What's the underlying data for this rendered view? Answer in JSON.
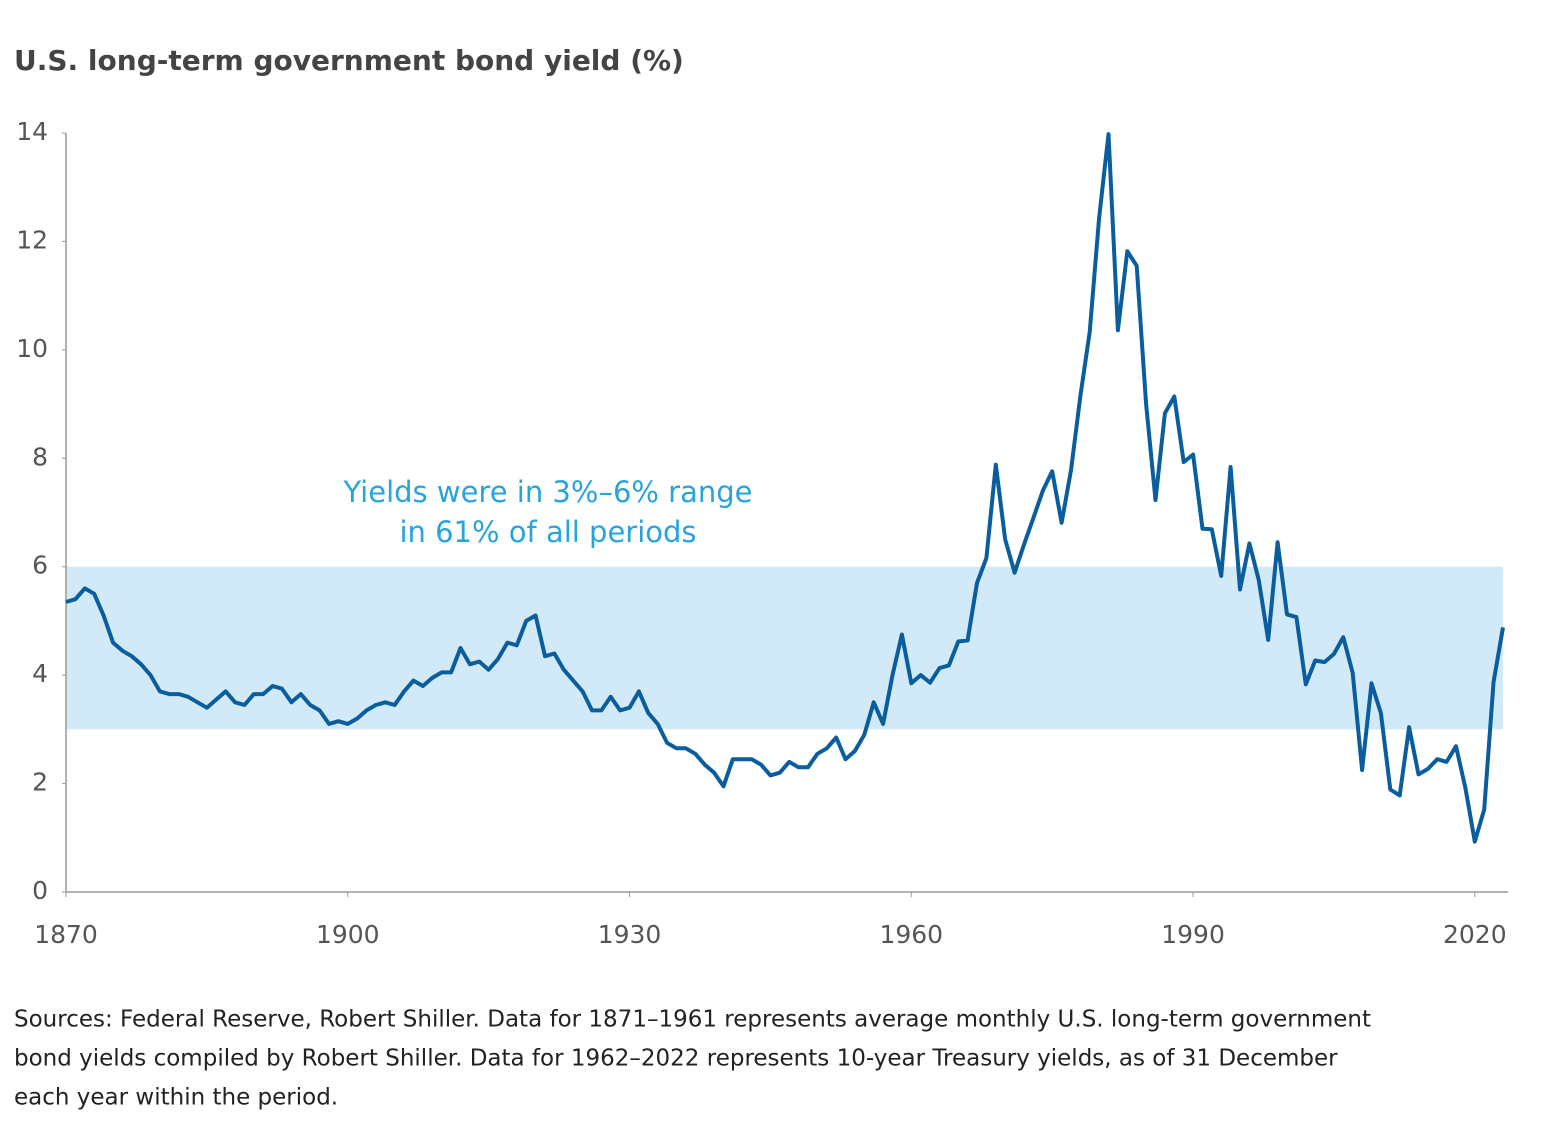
{
  "chart_data": {
    "type": "line",
    "title": "U.S. long-term government bond yield (%)",
    "annotation": [
      "Yields were in 3%–6% range",
      "in 61% of all periods"
    ],
    "band": {
      "from": 3,
      "to": 6,
      "color": "#d2eaf7"
    },
    "xlim": [
      1870,
      2023
    ],
    "xticks": [
      1870,
      1900,
      1930,
      1960,
      1990,
      2020
    ],
    "ylim": [
      0,
      14
    ],
    "yticks": [
      0,
      2,
      4,
      6,
      8,
      10,
      12,
      14
    ],
    "grid": false,
    "x": [
      1870,
      1871,
      1872,
      1873,
      1874,
      1875,
      1876,
      1877,
      1878,
      1879,
      1880,
      1881,
      1882,
      1883,
      1884,
      1885,
      1886,
      1887,
      1888,
      1889,
      1890,
      1891,
      1892,
      1893,
      1894,
      1895,
      1896,
      1897,
      1898,
      1899,
      1900,
      1901,
      1902,
      1903,
      1904,
      1905,
      1906,
      1907,
      1908,
      1909,
      1910,
      1911,
      1912,
      1913,
      1914,
      1915,
      1916,
      1917,
      1918,
      1919,
      1920,
      1921,
      1922,
      1923,
      1924,
      1925,
      1926,
      1927,
      1928,
      1929,
      1930,
      1931,
      1932,
      1933,
      1934,
      1935,
      1936,
      1937,
      1938,
      1939,
      1940,
      1941,
      1942,
      1943,
      1944,
      1945,
      1946,
      1947,
      1948,
      1949,
      1950,
      1951,
      1952,
      1953,
      1954,
      1955,
      1956,
      1957,
      1958,
      1959,
      1960,
      1961,
      1962,
      1963,
      1964,
      1965,
      1966,
      1967,
      1968,
      1969,
      1970,
      1971,
      1972,
      1973,
      1974,
      1975,
      1976,
      1977,
      1978,
      1979,
      1980,
      1981,
      1982,
      1983,
      1984,
      1985,
      1986,
      1987,
      1988,
      1989,
      1990,
      1991,
      1992,
      1993,
      1994,
      1995,
      1996,
      1997,
      1998,
      1999,
      2000,
      2001,
      2002,
      2003,
      2004,
      2005,
      2006,
      2007,
      2008,
      2009,
      2010,
      2011,
      2012,
      2013,
      2014,
      2015,
      2016,
      2017,
      2018,
      2019,
      2020,
      2021,
      2022,
      2023
    ],
    "series": [
      {
        "color": "#0b5e9e",
        "values": [
          5.35,
          5.4,
          5.6,
          5.5,
          5.1,
          4.6,
          4.45,
          4.35,
          4.2,
          4.0,
          3.7,
          3.65,
          3.65,
          3.6,
          3.5,
          3.4,
          3.55,
          3.7,
          3.5,
          3.45,
          3.65,
          3.65,
          3.8,
          3.75,
          3.5,
          3.65,
          3.45,
          3.35,
          3.1,
          3.15,
          3.1,
          3.2,
          3.35,
          3.45,
          3.5,
          3.45,
          3.7,
          3.9,
          3.8,
          3.95,
          4.05,
          4.05,
          4.5,
          4.2,
          4.25,
          4.1,
          4.3,
          4.6,
          4.55,
          5.0,
          5.1,
          4.35,
          4.4,
          4.1,
          3.9,
          3.7,
          3.35,
          3.35,
          3.6,
          3.35,
          3.4,
          3.7,
          3.3,
          3.1,
          2.75,
          2.65,
          2.65,
          2.55,
          2.35,
          2.2,
          1.95,
          2.45,
          2.45,
          2.45,
          2.35,
          2.15,
          2.2,
          2.4,
          2.3,
          2.3,
          2.55,
          2.65,
          2.85,
          2.45,
          2.6,
          2.9,
          3.5,
          3.1,
          4.0,
          4.75,
          3.85,
          4.0,
          3.86,
          4.13,
          4.18,
          4.62,
          4.64,
          5.7,
          6.16,
          7.88,
          6.5,
          5.89,
          6.41,
          6.9,
          7.4,
          7.76,
          6.81,
          7.78,
          9.15,
          10.33,
          12.43,
          13.98,
          10.36,
          11.82,
          11.55,
          9.0,
          7.23,
          8.83,
          9.14,
          7.93,
          8.07,
          6.7,
          6.69,
          5.83,
          7.84,
          5.58,
          6.43,
          5.75,
          4.65,
          6.45,
          5.12,
          5.07,
          3.83,
          4.27,
          4.24,
          4.39,
          4.7,
          4.04,
          2.25,
          3.85,
          3.3,
          1.89,
          1.78,
          3.04,
          2.17,
          2.27,
          2.45,
          2.4,
          2.69,
          1.92,
          0.93,
          1.52,
          3.88,
          4.88
        ]
      }
    ],
    "source": [
      "Sources: Federal Reserve, Robert Shiller. Data for 1871–1961 represents average monthly U.S. long-term government",
      "bond yields compiled by Robert Shiller. Data for 1962–2022 represents 10-year Treasury yields, as of 31 December",
      "each year within the period."
    ]
  }
}
